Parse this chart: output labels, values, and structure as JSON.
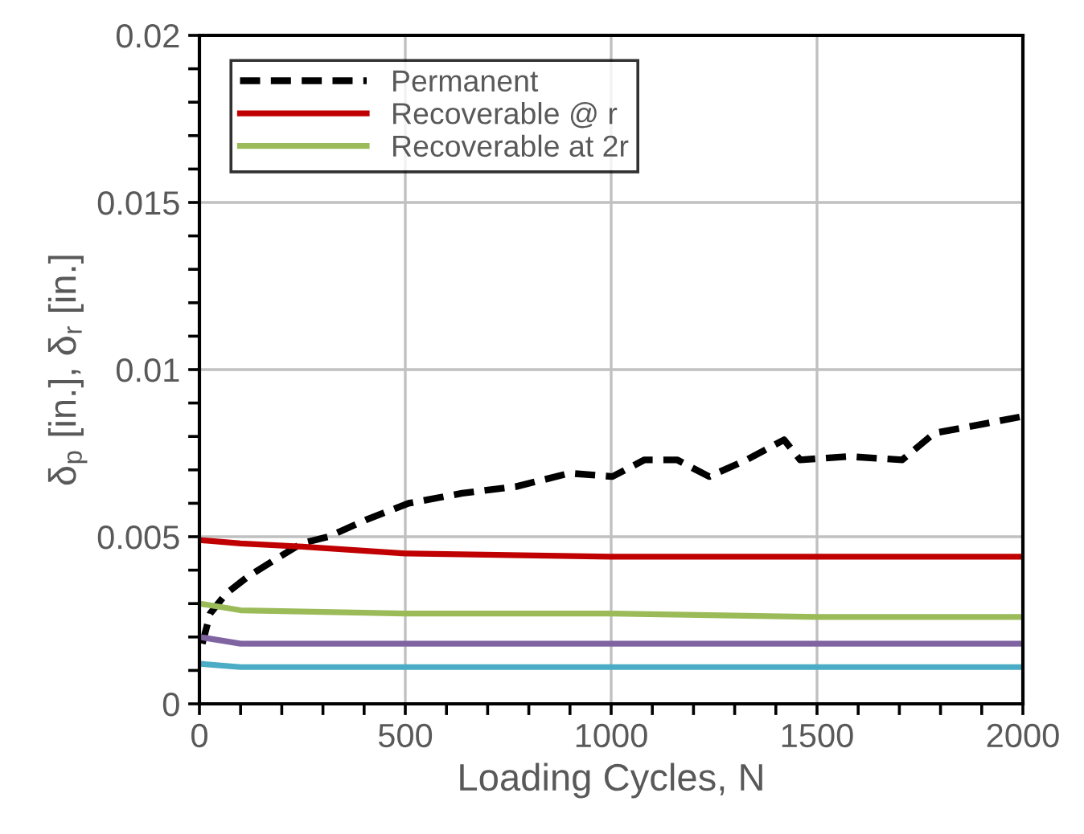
{
  "chart_data": {
    "type": "line",
    "xlabel": "Loading Cycles, N",
    "ylabel": "δ$_{p}$ [in.], δ$_{r}$ [in.]",
    "xlim": [
      0,
      2000
    ],
    "ylim": [
      0,
      0.02
    ],
    "xticks": [
      0,
      {
        "value": 100,
        "label": null
      },
      {
        "value": 200,
        "label": null
      },
      {
        "value": 300,
        "label": null
      },
      {
        "value": 400,
        "label": null
      },
      500,
      {
        "value": 600,
        "label": null
      },
      {
        "value": 700,
        "label": null
      },
      {
        "value": 800,
        "label": null
      },
      {
        "value": 900,
        "label": null
      },
      1000,
      {
        "value": 1100,
        "label": null
      },
      {
        "value": 1200,
        "label": null
      },
      {
        "value": 1300,
        "label": null
      },
      {
        "value": 1400,
        "label": null
      },
      1500,
      {
        "value": 1600,
        "label": null
      },
      {
        "value": 1700,
        "label": null
      },
      {
        "value": 1800,
        "label": null
      },
      {
        "value": 1900,
        "label": null
      },
      2000
    ],
    "yticks": [
      0,
      {
        "value": 0.001,
        "label": null
      },
      {
        "value": 0.002,
        "label": null
      },
      {
        "value": 0.003,
        "label": null
      },
      {
        "value": 0.004,
        "label": null
      },
      0.005,
      {
        "value": 0.006,
        "label": null
      },
      {
        "value": 0.007,
        "label": null
      },
      {
        "value": 0.008,
        "label": null
      },
      {
        "value": 0.009,
        "label": null
      },
      0.01,
      {
        "value": 0.011,
        "label": null
      },
      {
        "value": 0.012,
        "label": null
      },
      {
        "value": 0.013,
        "label": null
      },
      {
        "value": 0.014,
        "label": null
      },
      0.015,
      {
        "value": 0.016,
        "label": null
      },
      {
        "value": 0.017,
        "label": null
      },
      {
        "value": 0.018,
        "label": null
      },
      {
        "value": 0.019,
        "label": null
      },
      0.02
    ],
    "grid": true,
    "legend": "top left",
    "marker": "none",
    "series": [
      {
        "name": "Permanent",
        "color": "#000000",
        "line_style": "dashed",
        "x": [
          7,
          26,
          65,
          117,
          182,
          248,
          313,
          404,
          508,
          638,
          769,
          899,
          1003,
          1081,
          1160,
          1238,
          1329,
          1420,
          1459,
          1577,
          1707,
          1785,
          1915,
          2000
        ],
        "values": [
          0.0018,
          0.0027,
          0.0033,
          0.0038,
          0.0043,
          0.0048,
          0.005,
          0.0055,
          0.006,
          0.0063,
          0.0065,
          0.0069,
          0.0068,
          0.0073,
          0.0073,
          0.0068,
          0.0073,
          0.0079,
          0.0073,
          0.0074,
          0.0073,
          0.0081,
          0.0084,
          0.0086
        ]
      },
      {
        "name": "Recoverable @ r",
        "color": "#c00000",
        "line_style": "solid",
        "x": [
          0,
          100,
          250,
          500,
          1000,
          1500,
          2000
        ],
        "values": [
          0.0049,
          0.0048,
          0.0047,
          0.0045,
          0.0044,
          0.0044,
          0.0044
        ]
      },
      {
        "name": "Recoverable at 2r",
        "color": "#9bbb59",
        "line_style": "solid",
        "x": [
          0,
          100,
          500,
          1000,
          1500,
          2000
        ],
        "values": [
          0.003,
          0.0028,
          0.0027,
          0.0027,
          0.0026,
          0.0026
        ]
      },
      {
        "color": "#8064a2",
        "line_style": "solid",
        "x": [
          0,
          100,
          500,
          1000,
          1500,
          2000
        ],
        "values": [
          0.002,
          0.0018,
          0.0018,
          0.0018,
          0.0018,
          0.0018
        ]
      },
      {
        "color": "#4bacc6",
        "line_style": "solid",
        "x": [
          0,
          100,
          500,
          1000,
          1500,
          2000
        ],
        "values": [
          0.0012,
          0.0011,
          0.0011,
          0.0011,
          0.0011,
          0.0011
        ]
      }
    ]
  }
}
